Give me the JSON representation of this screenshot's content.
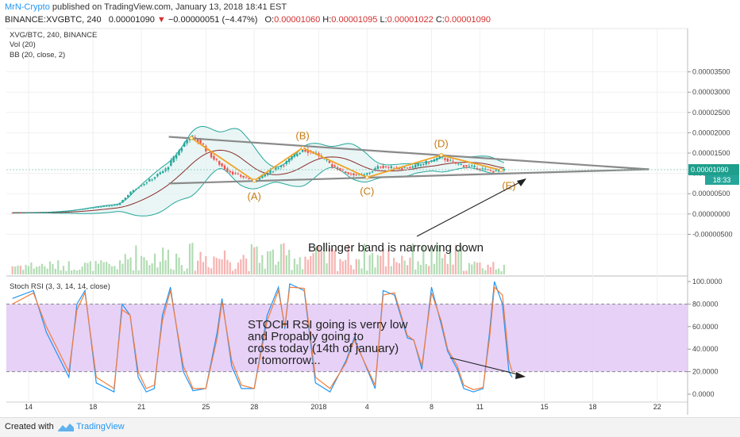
{
  "header": {
    "author": "MrN-Crypto",
    "published": "published on TradingView.com, January 13, 2018 18:41 EST",
    "symbol": "BINANCE:XVGBTC, 240",
    "price": "0.00001090",
    "change": "−0.00000051 (−4.47%)",
    "open_label": "O:",
    "open": "0.00001060",
    "high_label": "H:",
    "high": "0.00001095",
    "low_label": "L:",
    "low": "0.00001022",
    "close_label": "C:",
    "close": "0.00001090"
  },
  "legend": {
    "title": "XVG/BTC, 240, BINANCE",
    "volume": "Vol (20)",
    "bollinger": "BB (20, close, 2)",
    "stoch": "Stoch RSI (3, 3, 14, 14, close)"
  },
  "price_tag": {
    "value": "0.00001090",
    "countdown": "18:33"
  },
  "annotations": {
    "points": [
      "(A)",
      "(B)",
      "(C)",
      "(D)",
      "(E)"
    ],
    "bb_note": "Bollinger band is narrowing down",
    "rsi_note": [
      "STOCH RSI going is verry low",
      " and Propably going to",
      "cross today (14th of january)",
      "or tomorrow..."
    ]
  },
  "footer": {
    "created": "Created with",
    "brand": "TradingView"
  },
  "colors": {
    "up": "#26a69a",
    "down": "#ef5350",
    "bb_fill": "#e0f2f1",
    "bb_line": "#26a69a",
    "basis": "#8b2a2a",
    "wedge": "#8a8a8a",
    "abcde": "#f2a325",
    "stoch_k": "#2196f3",
    "stoch_d": "#f57c3a",
    "stoch_band": "#e3c9f6"
  },
  "chart_data": [
    {
      "type": "candlestick",
      "title": "XVG/BTC, 240, BINANCE",
      "y_axis": {
        "ticks": [
          "0.00003500",
          "0.00003000",
          "0.00002500",
          "0.00002000",
          "0.00001500",
          "0.00001000",
          "0.00000500",
          "0.00000000",
          "-0.00000500"
        ],
        "range": [
          -6.5e-06,
          3.8e-06
        ]
      },
      "x_axis": {
        "ticks": [
          "14",
          "18",
          "21",
          "25",
          "28",
          "2018",
          "4",
          "8",
          "11",
          "15",
          "18",
          "22"
        ]
      },
      "series_close_path": [
        [
          13.0,
          3e-07
        ],
        [
          15.0,
          4e-07
        ],
        [
          16.5,
          8e-07
        ],
        [
          18.0,
          1.6e-06
        ],
        [
          19.5,
          2.2e-06
        ],
        [
          20.5,
          6e-06
        ],
        [
          21.5,
          8.3e-06
        ],
        [
          22.5,
          1.1e-05
        ],
        [
          23.5,
          1.65e-05
        ],
        [
          24.0,
          1.92e-05
        ],
        [
          24.7,
          1.75e-05
        ],
        [
          25.5,
          1.35e-05
        ],
        [
          26.3,
          1.08e-05
        ],
        [
          27.0,
          9.5e-06
        ],
        [
          28.0,
          8.2e-06
        ],
        [
          29.0,
          1.05e-05
        ],
        [
          30.0,
          1.28e-05
        ],
        [
          31.0,
          1.6e-05
        ],
        [
          31.8,
          1.5e-05
        ],
        [
          32.8,
          1.2e-05
        ],
        [
          33.8,
          1e-05
        ],
        [
          34.8,
          9.5e-06
        ],
        [
          35.8,
          1.18e-05
        ],
        [
          36.8,
          1.12e-05
        ],
        [
          37.8,
          1.15e-05
        ],
        [
          38.8,
          1.28e-05
        ],
        [
          39.6,
          1.4e-05
        ],
        [
          40.4,
          1.25e-05
        ],
        [
          41.2,
          1.18e-05
        ],
        [
          42.0,
          1.12e-05
        ],
        [
          42.8,
          1.05e-05
        ],
        [
          43.5,
          1.09e-05
        ]
      ],
      "bollinger_bands": "shown (20, close, 2)",
      "trendlines": {
        "upper": [
          [
            22.7,
            1.9e-05
          ],
          [
            52.5,
            1.1e-05
          ]
        ],
        "lower": [
          [
            22.7,
            7.5e-06
          ],
          [
            52.5,
            1.1e-05
          ]
        ]
      },
      "abcde_path": [
        [
          24.1,
          1.87e-05
        ],
        [
          28.0,
          8.2e-06
        ],
        [
          31.0,
          1.63e-05
        ],
        [
          35.0,
          9e-06
        ],
        [
          39.6,
          1.45e-05
        ],
        [
          43.3,
          1.08e-05
        ]
      ]
    },
    {
      "type": "line",
      "title": "Stoch RSI (3, 3, 14, 14, close)",
      "y_axis": {
        "ticks": [
          "100.0000",
          "80.0000",
          "60.0000",
          "40.0000",
          "20.0000",
          "0.0000"
        ],
        "range": [
          -5,
          102
        ]
      },
      "band": [
        20,
        80
      ],
      "series": [
        {
          "name": "K",
          "points": [
            [
              13.0,
              85
            ],
            [
              14.3,
              92
            ],
            [
              15.1,
              55
            ],
            [
              16.5,
              15
            ],
            [
              17.0,
              80
            ],
            [
              17.5,
              92
            ],
            [
              18.2,
              10
            ],
            [
              19.3,
              2
            ],
            [
              19.8,
              80
            ],
            [
              20.3,
              70
            ],
            [
              20.8,
              15
            ],
            [
              21.3,
              2
            ],
            [
              21.8,
              5
            ],
            [
              22.3,
              70
            ],
            [
              22.8,
              95
            ],
            [
              23.6,
              20
            ],
            [
              24.2,
              3
            ],
            [
              25.0,
              5
            ],
            [
              25.7,
              55
            ],
            [
              26.0,
              85
            ],
            [
              26.6,
              25
            ],
            [
              27.2,
              5
            ],
            [
              28.0,
              5
            ],
            [
              28.8,
              70
            ],
            [
              29.5,
              95
            ],
            [
              29.9,
              58
            ],
            [
              30.2,
              98
            ],
            [
              31.1,
              92
            ],
            [
              31.8,
              10
            ],
            [
              32.7,
              2
            ],
            [
              33.7,
              30
            ],
            [
              34.2,
              50
            ],
            [
              35.5,
              5
            ],
            [
              36.0,
              92
            ],
            [
              36.7,
              88
            ],
            [
              37.5,
              50
            ],
            [
              37.9,
              48
            ],
            [
              38.4,
              22
            ],
            [
              39.0,
              95
            ],
            [
              39.6,
              62
            ],
            [
              40.0,
              38
            ],
            [
              40.6,
              22
            ],
            [
              41.0,
              5
            ],
            [
              41.6,
              2
            ],
            [
              42.2,
              5
            ],
            [
              42.6,
              55
            ],
            [
              42.9,
              100
            ],
            [
              43.4,
              80
            ],
            [
              43.8,
              20
            ],
            [
              44.0,
              15
            ]
          ]
        },
        {
          "name": "D",
          "points": [
            [
              13.0,
              80
            ],
            [
              14.3,
              90
            ],
            [
              15.1,
              60
            ],
            [
              16.5,
              20
            ],
            [
              17.0,
              75
            ],
            [
              17.5,
              90
            ],
            [
              18.2,
              15
            ],
            [
              19.3,
              5
            ],
            [
              19.8,
              75
            ],
            [
              20.3,
              70
            ],
            [
              20.8,
              20
            ],
            [
              21.3,
              5
            ],
            [
              21.8,
              8
            ],
            [
              22.3,
              65
            ],
            [
              22.8,
              92
            ],
            [
              23.6,
              25
            ],
            [
              24.2,
              5
            ],
            [
              25.0,
              5
            ],
            [
              25.7,
              50
            ],
            [
              26.0,
              82
            ],
            [
              26.6,
              30
            ],
            [
              27.2,
              8
            ],
            [
              28.0,
              5
            ],
            [
              28.8,
              65
            ],
            [
              29.5,
              92
            ],
            [
              29.9,
              60
            ],
            [
              30.2,
              95
            ],
            [
              31.1,
              94
            ],
            [
              31.8,
              15
            ],
            [
              32.7,
              5
            ],
            [
              33.7,
              28
            ],
            [
              34.2,
              48
            ],
            [
              35.5,
              8
            ],
            [
              36.0,
              88
            ],
            [
              36.7,
              90
            ],
            [
              37.5,
              52
            ],
            [
              37.9,
              48
            ],
            [
              38.4,
              25
            ],
            [
              39.0,
              90
            ],
            [
              39.6,
              65
            ],
            [
              40.0,
              40
            ],
            [
              40.6,
              25
            ],
            [
              41.0,
              8
            ],
            [
              41.6,
              4
            ],
            [
              42.2,
              6
            ],
            [
              42.6,
              50
            ],
            [
              42.9,
              95
            ],
            [
              43.4,
              88
            ],
            [
              43.8,
              30
            ],
            [
              44.0,
              20
            ]
          ]
        }
      ]
    }
  ]
}
